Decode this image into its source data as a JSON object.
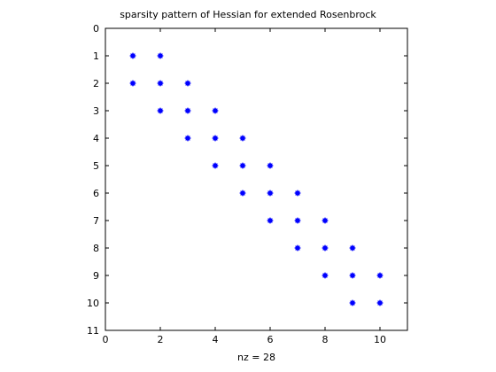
{
  "chart_data": {
    "type": "scatter",
    "title": "sparsity pattern of Hessian for extended Rosenbrock",
    "xlabel": "nz = 28",
    "ylabel": "",
    "xlim": [
      0,
      11
    ],
    "ylim": [
      0,
      11
    ],
    "y_reversed": true,
    "grid": false,
    "marker_color": "#0000ff",
    "x_ticks": [
      "0",
      "2",
      "4",
      "6",
      "8",
      "10"
    ],
    "y_ticks": [
      "0",
      "1",
      "2",
      "3",
      "4",
      "5",
      "6",
      "7",
      "8",
      "9",
      "10",
      "11"
    ],
    "x_tick_values": [
      0,
      2,
      4,
      6,
      8,
      10
    ],
    "y_tick_values": [
      0,
      1,
      2,
      3,
      4,
      5,
      6,
      7,
      8,
      9,
      10,
      11
    ],
    "points": [
      [
        1,
        1
      ],
      [
        2,
        1
      ],
      [
        1,
        2
      ],
      [
        2,
        2
      ],
      [
        3,
        2
      ],
      [
        2,
        3
      ],
      [
        3,
        3
      ],
      [
        4,
        3
      ],
      [
        3,
        4
      ],
      [
        4,
        4
      ],
      [
        5,
        4
      ],
      [
        4,
        5
      ],
      [
        5,
        5
      ],
      [
        6,
        5
      ],
      [
        5,
        6
      ],
      [
        6,
        6
      ],
      [
        7,
        6
      ],
      [
        6,
        7
      ],
      [
        7,
        7
      ],
      [
        8,
        7
      ],
      [
        7,
        8
      ],
      [
        8,
        8
      ],
      [
        9,
        8
      ],
      [
        8,
        9
      ],
      [
        9,
        9
      ],
      [
        10,
        9
      ],
      [
        9,
        10
      ],
      [
        10,
        10
      ]
    ]
  }
}
